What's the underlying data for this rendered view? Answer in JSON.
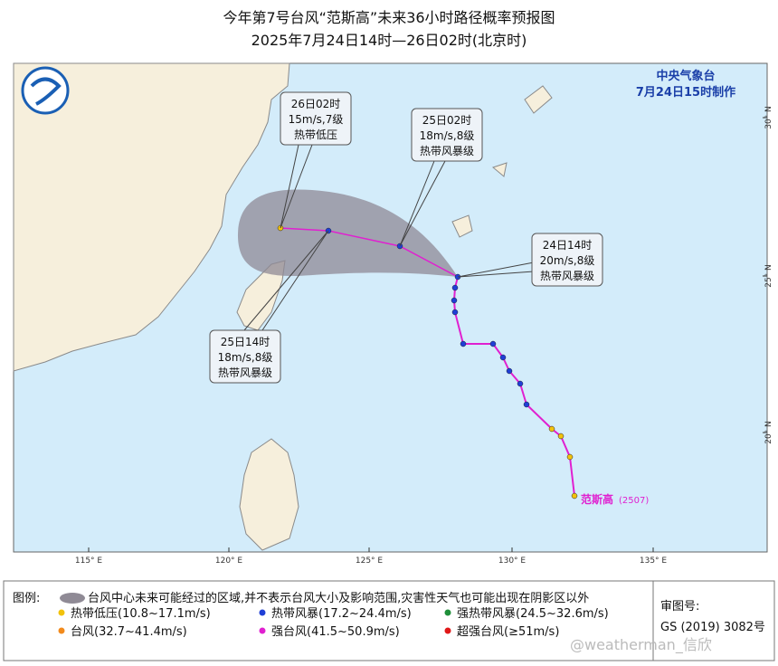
{
  "header": {
    "title": "今年第7号台风“范斯高”未来36小时路径概率预报图",
    "subtitle": "2025年7月24日14时—26日02时(北京时)"
  },
  "map": {
    "agency": "中央气象台",
    "issued": "7月24日15时制作",
    "longitude_labels": [
      "115° E",
      "120° E",
      "125° E",
      "130° E",
      "135° E"
    ],
    "latitude_labels": [
      "30° N",
      "25° N",
      "20° N"
    ],
    "storm_name": "范斯高",
    "storm_code": "(2507)",
    "callouts": [
      {
        "time": "26日02时",
        "wind": "15m/s,7级",
        "category": "热带低压"
      },
      {
        "time": "25日02时",
        "wind": "18m/s,8级",
        "category": "热带风暴级"
      },
      {
        "time": "24日14时",
        "wind": "20m/s,8级",
        "category": "热带风暴级"
      },
      {
        "time": "25日14时",
        "wind": "18m/s,8级",
        "category": "热带风暴级"
      }
    ]
  },
  "legend": {
    "title": "图例:",
    "cone_note": "台风中心未来可能经过的区域,并不表示台风大小及影响范围,灾害性天气也可能出现在阴影区以外",
    "items": [
      {
        "label": "热带低压(10.8~17.1m/s)",
        "color": "#f2c20c"
      },
      {
        "label": "热带风暴(17.2~24.4m/s)",
        "color": "#1f3fd6"
      },
      {
        "label": "强热带风暴(24.5~32.6m/s)",
        "color": "#1f8f3a"
      },
      {
        "label": "台风(32.7~41.4m/s)",
        "color": "#f28a1c"
      },
      {
        "label": "强台风(41.5~50.9m/s)",
        "color": "#e020d0"
      },
      {
        "label": "超强台风(≥51m/s)",
        "color": "#e01818"
      }
    ]
  },
  "approval": {
    "label": "审图号:",
    "number": "GS (2019) 3082号"
  },
  "watermark": "@weatherman_信欣"
}
